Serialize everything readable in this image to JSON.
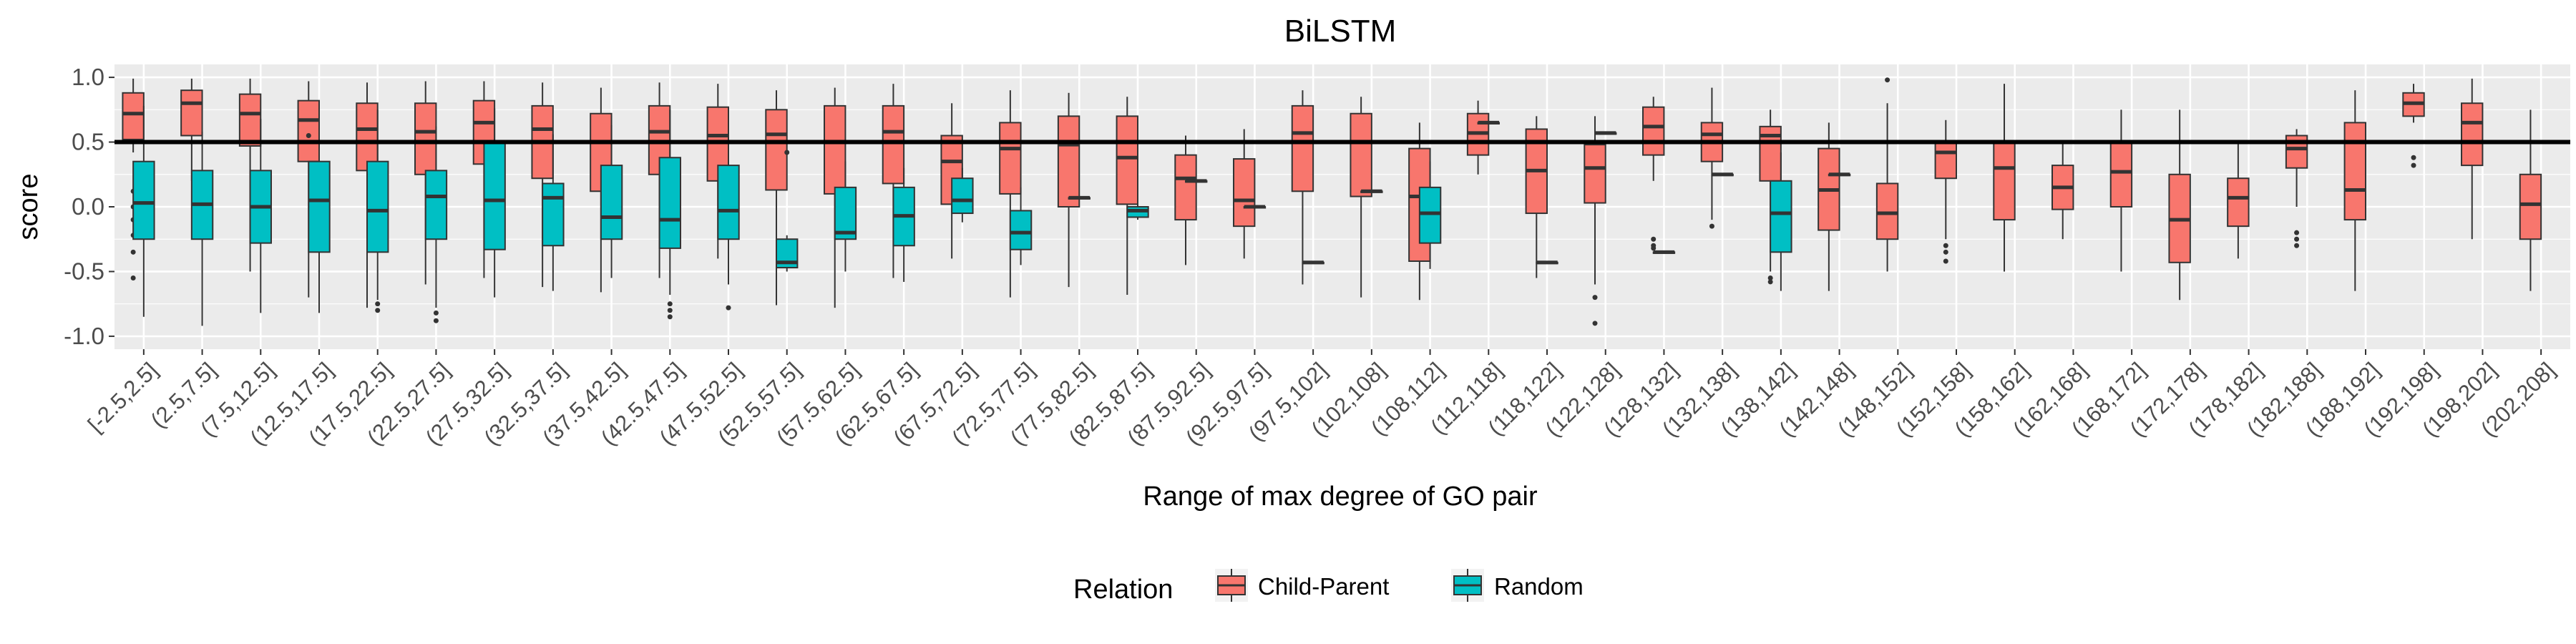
{
  "chart_data": {
    "type": "boxplot",
    "title": "BiLSTM",
    "xlabel": "Range of max degree of GO pair",
    "ylabel": "score",
    "ylim": [
      -1.0,
      1.0
    ],
    "yticks": [
      1.0,
      0.5,
      0.0,
      -0.5,
      -1.0
    ],
    "ytick_labels": [
      "1.0",
      "0.5",
      "0.0",
      "-0.5",
      "-1.0"
    ],
    "reference_line": 0.5,
    "legend": {
      "title": "Relation",
      "position": "bottom",
      "entries": [
        {
          "name": "Child-Parent",
          "color": "#F8766D"
        },
        {
          "name": "Random",
          "color": "#00BFC4"
        }
      ]
    },
    "background": "#EBEBEB",
    "grid": true,
    "categories": [
      "[-2.5,2.5]",
      "(2.5,7.5]",
      "(7.5,12.5]",
      "(12.5,17.5]",
      "(17.5,22.5]",
      "(22.5,27.5]",
      "(27.5,32.5]",
      "(32.5,37.5]",
      "(37.5,42.5]",
      "(42.5,47.5]",
      "(47.5,52.5]",
      "(52.5,57.5]",
      "(57.5,62.5]",
      "(62.5,67.5]",
      "(67.5,72.5]",
      "(72.5,77.5]",
      "(77.5,82.5]",
      "(82.5,87.5]",
      "(87.5,92.5]",
      "(92.5,97.5]",
      "(97.5,102]",
      "(102,108]",
      "(108,112]",
      "(112,118]",
      "(118,122]",
      "(122,128]",
      "(128,132]",
      "(132,138]",
      "(138,142]",
      "(142,148]",
      "(148,152]",
      "(152,158]",
      "(158,162]",
      "(162,168]",
      "(168,172]",
      "(172,178]",
      "(178,182]",
      "(182,188]",
      "(188,192]",
      "(192,198]",
      "(198,202]",
      "(202,208]"
    ],
    "series": [
      {
        "name": "Child-Parent",
        "color": "#F8766D",
        "boxes": [
          {
            "min": 0.42,
            "q1": 0.52,
            "median": 0.72,
            "q3": 0.88,
            "max": 0.99,
            "outliers": [
              0.12,
              0.0,
              -0.1,
              -0.22,
              -0.35,
              -0.55
            ]
          },
          {
            "min": 0.2,
            "q1": 0.55,
            "median": 0.8,
            "q3": 0.9,
            "max": 0.99,
            "outliers": []
          },
          {
            "min": -0.5,
            "q1": 0.47,
            "median": 0.72,
            "q3": 0.87,
            "max": 0.99,
            "outliers": []
          },
          {
            "min": -0.7,
            "q1": 0.35,
            "median": 0.67,
            "q3": 0.82,
            "max": 0.97,
            "outliers": [
              0.55
            ]
          },
          {
            "min": -0.78,
            "q1": 0.28,
            "median": 0.6,
            "q3": 0.8,
            "max": 0.96,
            "outliers": []
          },
          {
            "min": -0.6,
            "q1": 0.25,
            "median": 0.58,
            "q3": 0.8,
            "max": 0.97,
            "outliers": []
          },
          {
            "min": -0.55,
            "q1": 0.33,
            "median": 0.65,
            "q3": 0.82,
            "max": 0.97,
            "outliers": []
          },
          {
            "min": -0.62,
            "q1": 0.22,
            "median": 0.6,
            "q3": 0.78,
            "max": 0.96,
            "outliers": []
          },
          {
            "min": -0.66,
            "q1": 0.12,
            "median": 0.5,
            "q3": 0.72,
            "max": 0.92,
            "outliers": []
          },
          {
            "min": -0.55,
            "q1": 0.25,
            "median": 0.58,
            "q3": 0.78,
            "max": 0.96,
            "outliers": []
          },
          {
            "min": -0.4,
            "q1": 0.2,
            "median": 0.55,
            "q3": 0.77,
            "max": 0.95,
            "outliers": []
          },
          {
            "min": -0.76,
            "q1": 0.13,
            "median": 0.56,
            "q3": 0.75,
            "max": 0.9,
            "outliers": []
          },
          {
            "min": -0.78,
            "q1": 0.1,
            "median": 0.5,
            "q3": 0.78,
            "max": 0.92,
            "outliers": []
          },
          {
            "min": -0.55,
            "q1": 0.18,
            "median": 0.58,
            "q3": 0.78,
            "max": 0.95,
            "outliers": []
          },
          {
            "min": -0.4,
            "q1": 0.02,
            "median": 0.35,
            "q3": 0.55,
            "max": 0.8,
            "outliers": []
          },
          {
            "min": -0.7,
            "q1": 0.1,
            "median": 0.45,
            "q3": 0.65,
            "max": 0.9,
            "outliers": []
          },
          {
            "min": -0.62,
            "q1": 0.0,
            "median": 0.48,
            "q3": 0.7,
            "max": 0.88,
            "outliers": []
          },
          {
            "min": -0.68,
            "q1": 0.02,
            "median": 0.38,
            "q3": 0.7,
            "max": 0.85,
            "outliers": []
          },
          {
            "min": -0.45,
            "q1": -0.1,
            "median": 0.22,
            "q3": 0.4,
            "max": 0.55,
            "outliers": []
          },
          {
            "min": -0.4,
            "q1": -0.15,
            "median": 0.05,
            "q3": 0.37,
            "max": 0.6,
            "outliers": []
          },
          {
            "min": -0.6,
            "q1": 0.12,
            "median": 0.57,
            "q3": 0.78,
            "max": 0.9,
            "outliers": []
          },
          {
            "min": -0.7,
            "q1": 0.08,
            "median": 0.5,
            "q3": 0.72,
            "max": 0.85,
            "outliers": []
          },
          {
            "min": -0.72,
            "q1": -0.42,
            "median": 0.08,
            "q3": 0.45,
            "max": 0.65,
            "outliers": []
          },
          {
            "min": 0.25,
            "q1": 0.4,
            "median": 0.57,
            "q3": 0.72,
            "max": 0.82,
            "outliers": []
          },
          {
            "min": -0.55,
            "q1": -0.05,
            "median": 0.28,
            "q3": 0.6,
            "max": 0.7,
            "outliers": []
          },
          {
            "min": -0.6,
            "q1": 0.03,
            "median": 0.3,
            "q3": 0.48,
            "max": 0.7,
            "outliers": [
              -0.7,
              -0.9
            ]
          },
          {
            "min": 0.2,
            "q1": 0.4,
            "median": 0.62,
            "q3": 0.77,
            "max": 0.85,
            "outliers": [
              -0.25,
              -0.3,
              -0.32
            ]
          },
          {
            "min": -0.1,
            "q1": 0.35,
            "median": 0.56,
            "q3": 0.65,
            "max": 0.92,
            "outliers": [
              -0.15
            ]
          },
          {
            "min": -0.5,
            "q1": 0.2,
            "median": 0.55,
            "q3": 0.62,
            "max": 0.75,
            "outliers": [
              -0.55,
              -0.58
            ]
          },
          {
            "min": -0.65,
            "q1": -0.18,
            "median": 0.13,
            "q3": 0.45,
            "max": 0.65,
            "outliers": []
          },
          {
            "min": -0.5,
            "q1": -0.25,
            "median": -0.05,
            "q3": 0.18,
            "max": 0.8,
            "outliers": [
              0.98
            ]
          },
          {
            "min": -0.25,
            "q1": 0.22,
            "median": 0.42,
            "q3": 0.5,
            "max": 0.67,
            "outliers": [
              -0.3,
              -0.35,
              -0.42
            ]
          },
          {
            "min": -0.5,
            "q1": -0.1,
            "median": 0.3,
            "q3": 0.5,
            "max": 0.95,
            "outliers": []
          },
          {
            "min": -0.25,
            "q1": -0.02,
            "median": 0.15,
            "q3": 0.32,
            "max": 0.5,
            "outliers": []
          },
          {
            "min": -0.5,
            "q1": 0.0,
            "median": 0.27,
            "q3": 0.5,
            "max": 0.75,
            "outliers": []
          },
          {
            "min": -0.72,
            "q1": -0.43,
            "median": -0.1,
            "q3": 0.25,
            "max": 0.75,
            "outliers": []
          },
          {
            "min": -0.4,
            "q1": -0.15,
            "median": 0.07,
            "q3": 0.22,
            "max": 0.5,
            "outliers": []
          },
          {
            "min": 0.0,
            "q1": 0.3,
            "median": 0.45,
            "q3": 0.55,
            "max": 0.6,
            "outliers": [
              -0.2,
              -0.25,
              -0.3
            ]
          },
          {
            "min": -0.65,
            "q1": -0.1,
            "median": 0.13,
            "q3": 0.65,
            "max": 0.9,
            "outliers": []
          },
          {
            "min": 0.65,
            "q1": 0.7,
            "median": 0.8,
            "q3": 0.88,
            "max": 0.95,
            "outliers": [
              0.38,
              0.32
            ]
          },
          {
            "min": -0.25,
            "q1": 0.32,
            "median": 0.65,
            "q3": 0.8,
            "max": 0.99,
            "outliers": []
          },
          {
            "min": -0.65,
            "q1": -0.25,
            "median": 0.02,
            "q3": 0.25,
            "max": 0.75,
            "outliers": []
          }
        ]
      },
      {
        "name": "Random",
        "color": "#00BFC4",
        "boxes": [
          {
            "min": -0.85,
            "q1": -0.25,
            "median": 0.03,
            "q3": 0.35,
            "max": 0.78,
            "outliers": []
          },
          {
            "min": -0.92,
            "q1": -0.25,
            "median": 0.02,
            "q3": 0.28,
            "max": 0.58,
            "outliers": []
          },
          {
            "min": -0.82,
            "q1": -0.28,
            "median": 0.0,
            "q3": 0.28,
            "max": 0.68,
            "outliers": []
          },
          {
            "min": -0.82,
            "q1": -0.35,
            "median": 0.05,
            "q3": 0.35,
            "max": 0.78,
            "outliers": []
          },
          {
            "min": -0.72,
            "q1": -0.35,
            "median": -0.03,
            "q3": 0.35,
            "max": 0.75,
            "outliers": [
              -0.75,
              -0.8
            ]
          },
          {
            "min": -0.78,
            "q1": -0.25,
            "median": 0.08,
            "q3": 0.28,
            "max": 0.62,
            "outliers": [
              -0.82,
              -0.88
            ]
          },
          {
            "min": -0.7,
            "q1": -0.33,
            "median": 0.05,
            "q3": 0.5,
            "max": 0.76,
            "outliers": []
          },
          {
            "min": -0.65,
            "q1": -0.3,
            "median": 0.07,
            "q3": 0.18,
            "max": 0.56,
            "outliers": []
          },
          {
            "min": -0.55,
            "q1": -0.25,
            "median": -0.08,
            "q3": 0.32,
            "max": 0.63,
            "outliers": []
          },
          {
            "min": -0.68,
            "q1": -0.32,
            "median": -0.1,
            "q3": 0.38,
            "max": 0.75,
            "outliers": [
              -0.75,
              -0.8,
              -0.85
            ]
          },
          {
            "min": -0.6,
            "q1": -0.25,
            "median": -0.03,
            "q3": 0.32,
            "max": 0.52,
            "outliers": [
              -0.78
            ]
          },
          {
            "min": -0.5,
            "q1": -0.47,
            "median": -0.43,
            "q3": -0.25,
            "max": -0.22,
            "outliers": [
              0.42
            ]
          },
          {
            "min": -0.5,
            "q1": -0.25,
            "median": -0.2,
            "q3": 0.15,
            "max": 0.35,
            "outliers": []
          },
          {
            "min": -0.58,
            "q1": -0.3,
            "median": -0.07,
            "q3": 0.15,
            "max": 0.3,
            "outliers": []
          },
          {
            "min": -0.12,
            "q1": -0.05,
            "median": 0.05,
            "q3": 0.22,
            "max": 0.3,
            "outliers": []
          },
          {
            "min": -0.45,
            "q1": -0.33,
            "median": -0.2,
            "q3": -0.03,
            "max": 0.15,
            "outliers": []
          },
          {
            "min": 0.07,
            "q1": 0.07,
            "median": 0.07,
            "q3": 0.07,
            "max": 0.07,
            "outliers": []
          },
          {
            "min": -0.1,
            "q1": -0.08,
            "median": -0.03,
            "q3": 0.0,
            "max": 0.05,
            "outliers": []
          },
          {
            "min": 0.2,
            "q1": 0.2,
            "median": 0.2,
            "q3": 0.2,
            "max": 0.2,
            "outliers": []
          },
          {
            "min": 0.0,
            "q1": 0.0,
            "median": 0.0,
            "q3": 0.0,
            "max": 0.0,
            "outliers": []
          },
          {
            "min": -0.43,
            "q1": -0.43,
            "median": -0.43,
            "q3": -0.43,
            "max": -0.43,
            "outliers": []
          },
          {
            "min": 0.12,
            "q1": 0.12,
            "median": 0.12,
            "q3": 0.12,
            "max": 0.12,
            "outliers": []
          },
          {
            "min": -0.48,
            "q1": -0.28,
            "median": -0.05,
            "q3": 0.15,
            "max": 0.35,
            "outliers": []
          },
          {
            "min": 0.65,
            "q1": 0.65,
            "median": 0.65,
            "q3": 0.65,
            "max": 0.65,
            "outliers": []
          },
          {
            "min": -0.43,
            "q1": -0.43,
            "median": -0.43,
            "q3": -0.43,
            "max": -0.43,
            "outliers": []
          },
          {
            "min": 0.57,
            "q1": 0.57,
            "median": 0.57,
            "q3": 0.57,
            "max": 0.57,
            "outliers": []
          },
          {
            "min": -0.35,
            "q1": -0.35,
            "median": -0.35,
            "q3": -0.35,
            "max": -0.35,
            "outliers": []
          },
          {
            "min": 0.25,
            "q1": 0.25,
            "median": 0.25,
            "q3": 0.25,
            "max": 0.25,
            "outliers": []
          },
          {
            "min": -0.65,
            "q1": -0.35,
            "median": -0.05,
            "q3": 0.2,
            "max": 0.42,
            "outliers": []
          },
          {
            "min": 0.25,
            "q1": 0.25,
            "median": 0.25,
            "q3": 0.25,
            "max": 0.25,
            "outliers": []
          }
        ]
      }
    ]
  }
}
